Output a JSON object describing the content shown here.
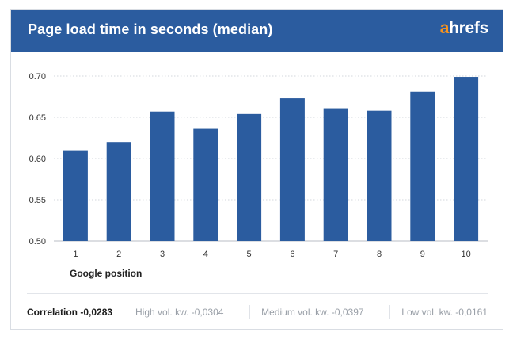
{
  "header": {
    "title": "Page load time in seconds (median)",
    "logo_accent": "a",
    "logo_rest": "hrefs"
  },
  "chart_data": {
    "type": "bar",
    "title": "Page load time in seconds (median)",
    "xlabel": "Google position",
    "ylabel": "",
    "categories": [
      "1",
      "2",
      "3",
      "4",
      "5",
      "6",
      "7",
      "8",
      "9",
      "10"
    ],
    "values": [
      0.61,
      0.62,
      0.657,
      0.636,
      0.654,
      0.673,
      0.661,
      0.658,
      0.681,
      0.699
    ],
    "ylim": [
      0.5,
      0.7
    ],
    "yticks": [
      "0.50",
      "0.55",
      "0.60",
      "0.65",
      "0.70"
    ],
    "grid": true,
    "bar_color": "#2b5c9f"
  },
  "footer": {
    "correlation": "Correlation -0,0283",
    "high": "High vol. kw. -0,0304",
    "medium": "Medium vol. kw. -0,0397",
    "low": "Low vol. kw. -0,0161"
  },
  "colors": {
    "header_bg": "#2b5c9f",
    "logo_accent": "#f7931e"
  }
}
